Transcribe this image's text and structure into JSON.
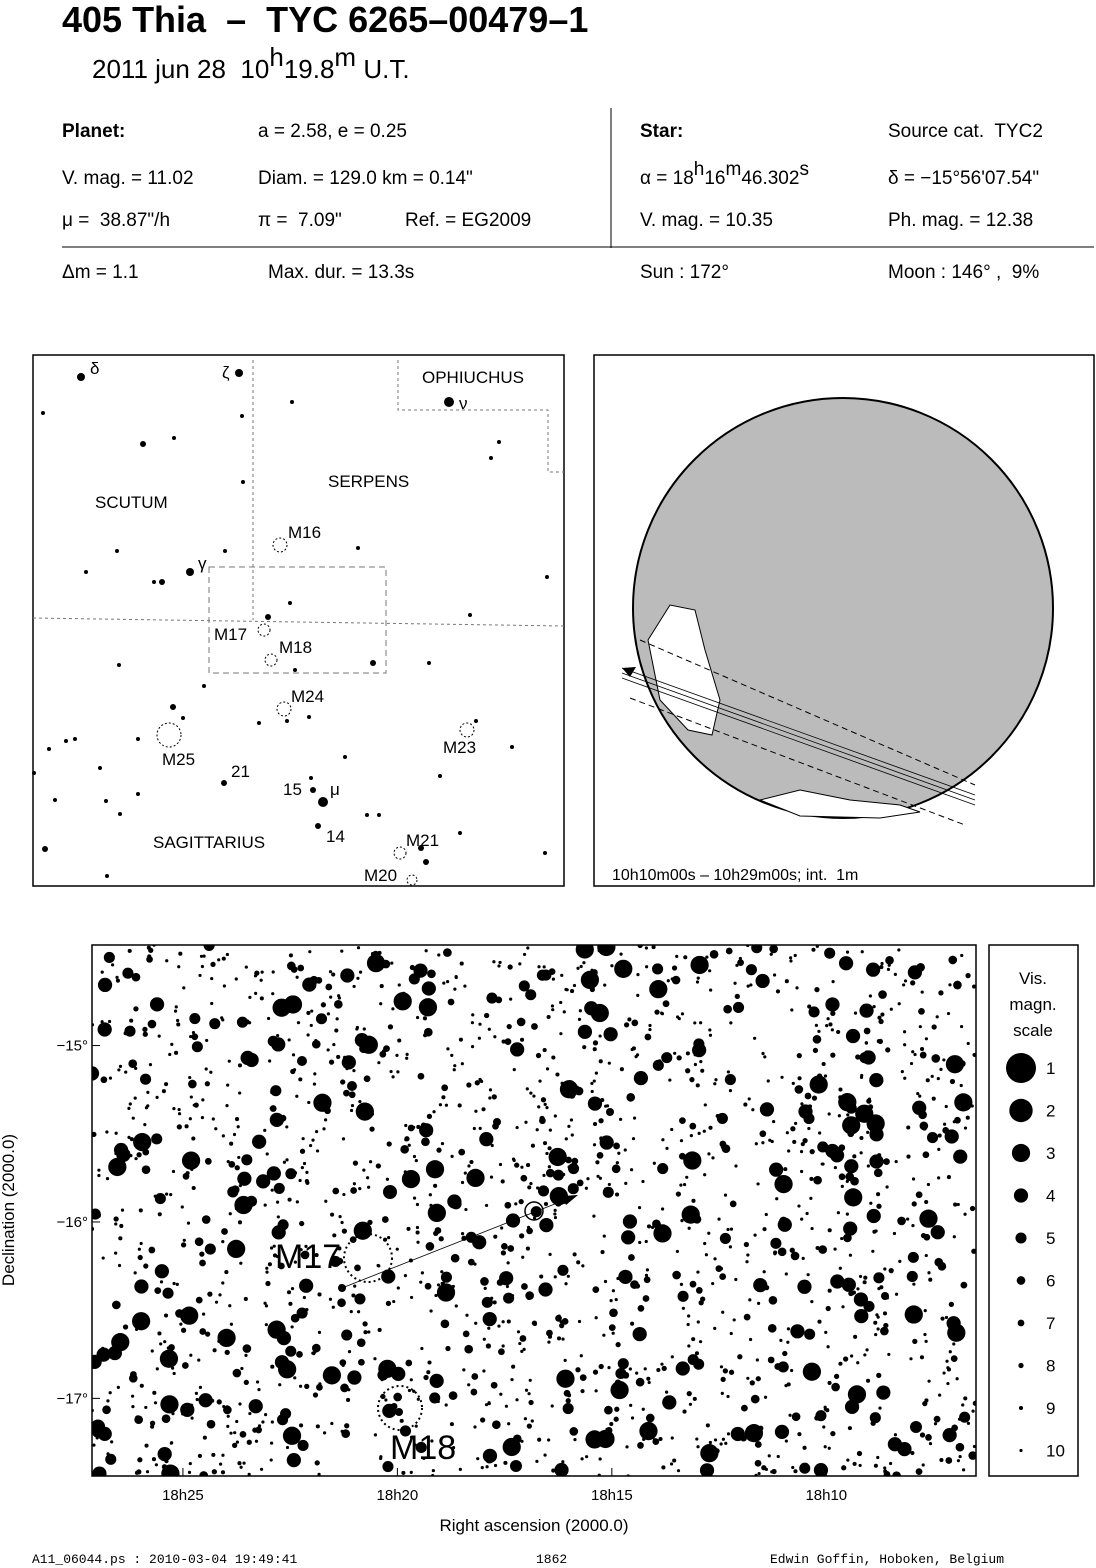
{
  "header": {
    "title": "405 Thia  –  TYC 6265–00479–1",
    "subtitle": [
      "2011 jun 28  10",
      "h",
      "19.8",
      "m",
      " U.T."
    ]
  },
  "planet": {
    "label": "Planet:",
    "orbit": "a = 2.58, e = 0.25",
    "vmag": "V. mag. = 11.02",
    "diam": "Diam. = 129.0 km = 0.14\"",
    "motion": "μ =  38.87\"/h",
    "parallax": "π =  7.09\"",
    "ref": "Ref. = EG2009"
  },
  "star": {
    "label": "Star:",
    "source": "Source cat.  TYC2",
    "ra": [
      "α = 18",
      "h",
      "16",
      "m",
      "46.302",
      "s"
    ],
    "dec": "δ = −15°56'07.54\"",
    "vmag": "V. mag. = 10.35",
    "phmag": "Ph. mag. = 12.38"
  },
  "event": {
    "dm": "Δm = 1.1",
    "maxdur": "Max. dur. = 13.3s",
    "sun": "Sun : 172°",
    "moon": "Moon : 146° ,  9%"
  },
  "finder_chart": {
    "labels": [
      "δ",
      "ζ",
      "OPHIUCHUS",
      "ν",
      "SCUTUM",
      "SERPENS",
      "M16",
      "γ",
      "M17",
      "M18",
      "M24",
      "M25",
      "21",
      "M23",
      "15",
      "μ",
      "14",
      "SAGITTARIUS",
      "M21",
      "M20"
    ]
  },
  "globe": {
    "caption": "10h10m00s – 10h29m00s; int.  1m"
  },
  "chart_data": {
    "type": "scatter",
    "xlabel": "Right ascension (2000.0)",
    "ylabel": "Declination (2000.0)",
    "xlim": [
      27.12,
      6.51
    ],
    "ylim": [
      -17.44,
      -14.43
    ],
    "xticks": [
      {
        "value": 25,
        "label": "18h25"
      },
      {
        "value": 20,
        "label": "18h20"
      },
      {
        "value": 15,
        "label": "18h15"
      },
      {
        "value": 10,
        "label": "18h10"
      }
    ],
    "yticks": [
      {
        "value": -15,
        "label": "−15°"
      },
      {
        "value": -16,
        "label": "−16°"
      },
      {
        "value": -17,
        "label": "−17°"
      }
    ],
    "annotations": [
      "M17",
      "M18"
    ]
  },
  "legend": {
    "title": [
      "Vis.",
      "magn.",
      "scale"
    ],
    "magnitudes": [
      1,
      2,
      3,
      4,
      5,
      6,
      7,
      8,
      9,
      10
    ]
  },
  "footer": {
    "file": "A11_06044.ps : 2010-03-04 19:49:41",
    "number": "1862",
    "author": "Edwin Goffin, Hoboken, Belgium"
  }
}
